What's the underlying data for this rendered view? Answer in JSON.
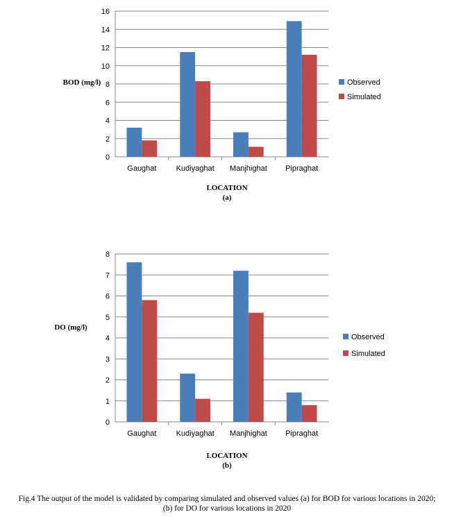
{
  "chart_data": [
    {
      "type": "bar",
      "categories": [
        "Gaughat",
        "Kudiyaghat",
        "Manjhighat",
        "Pipraghat"
      ],
      "series": [
        {
          "name": "Observed",
          "values": [
            3.2,
            11.5,
            2.7,
            14.9
          ],
          "color": "#4a7ebb"
        },
        {
          "name": "Simulated",
          "values": [
            1.8,
            8.3,
            1.1,
            11.2
          ],
          "color": "#be4b48"
        }
      ],
      "ylabel": "BOD (mg/l)",
      "xlabel": "LOCATION",
      "sublabel": "(a)",
      "ylim": [
        0,
        16
      ],
      "yticks": [
        0,
        2,
        4,
        6,
        8,
        10,
        12,
        14,
        16
      ],
      "grid": true,
      "legend": "right"
    },
    {
      "type": "bar",
      "categories": [
        "Gaughat",
        "Kudiyaghat",
        "Manjhighat",
        "Pipraghat"
      ],
      "series": [
        {
          "name": "Observed",
          "values": [
            7.6,
            2.3,
            7.2,
            1.4
          ],
          "color": "#4a7ebb"
        },
        {
          "name": "Simulated",
          "values": [
            5.8,
            1.1,
            5.2,
            0.8
          ],
          "color": "#be4b48"
        }
      ],
      "ylabel": "DO (mg/l)",
      "xlabel": "LOCATION",
      "sublabel": "(b)",
      "ylim": [
        0,
        8
      ],
      "yticks": [
        0,
        1,
        2,
        3,
        4,
        5,
        6,
        7,
        8
      ],
      "grid": true,
      "legend": "right"
    }
  ],
  "caption": {
    "line1": "Fig.4 The output of the model is validated by comparing simulated and observed values (a) for BOD for various locations in 2020;",
    "line2": "(b) for DO for various locations in 2020"
  }
}
